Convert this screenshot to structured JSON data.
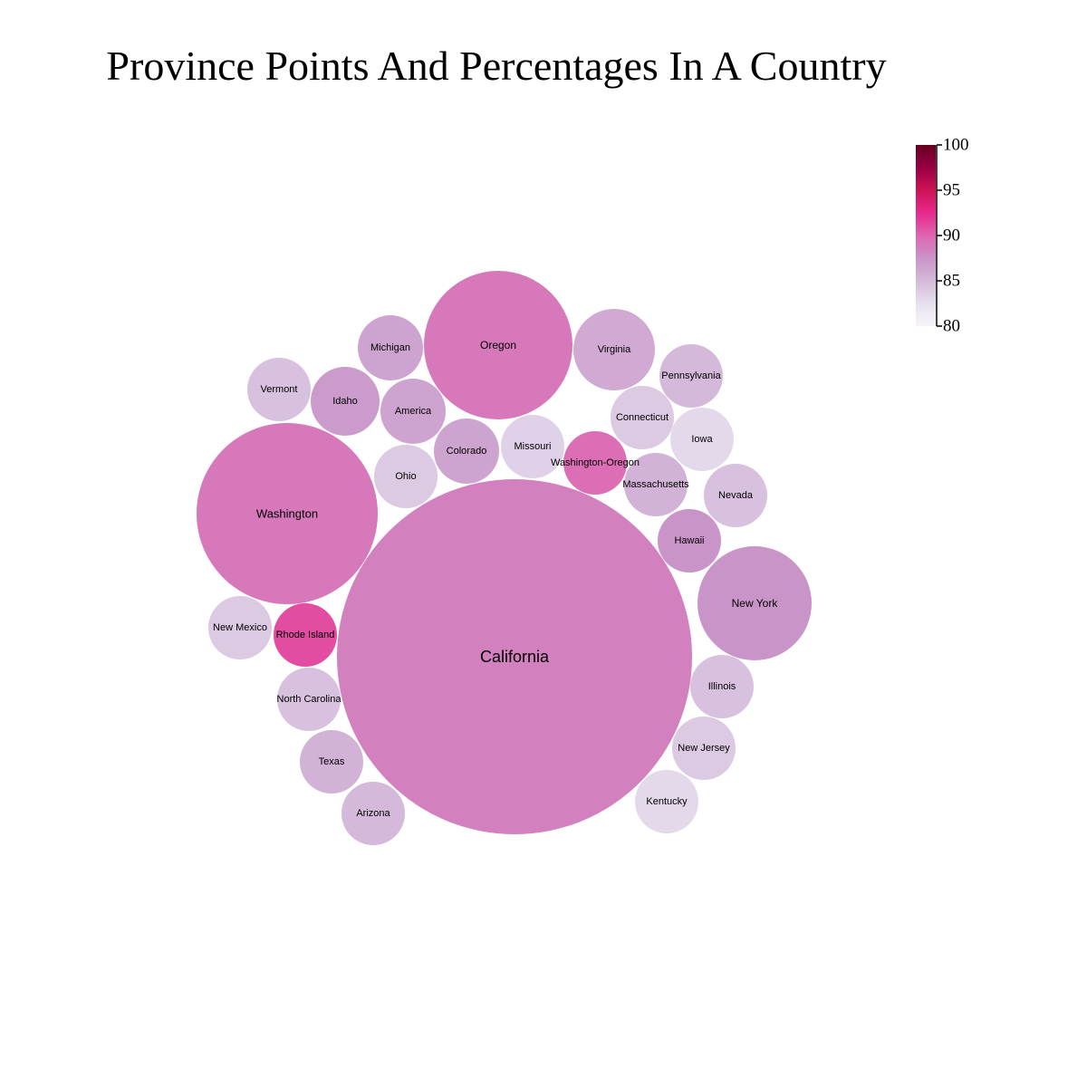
{
  "chart_data": {
    "type": "bubble",
    "title": "Province Points And Percentages In A Country",
    "colorbar": {
      "min": 80,
      "max": 100,
      "ticks": [
        "80",
        "85",
        "90",
        "95",
        "100"
      ],
      "colors": [
        "#f7f4f9",
        "#e7e1ef",
        "#d4b9da",
        "#c994c7",
        "#df65b0",
        "#e7298a",
        "#ce1256",
        "#980043",
        "#67001f"
      ]
    },
    "bubbles": [
      {
        "name": "California",
        "value": 100,
        "percentage": 88.5
      },
      {
        "name": "Washington",
        "value": 26,
        "percentage": 89.0
      },
      {
        "name": "Oregon",
        "value": 17.5,
        "percentage": 89.0
      },
      {
        "name": "New York",
        "value": 10.5,
        "percentage": 87.5
      },
      {
        "name": "Virginia",
        "value": 5.3,
        "percentage": 86.0
      },
      {
        "name": "Michigan",
        "value": 3.4,
        "percentage": 86.5
      },
      {
        "name": "Idaho",
        "value": 3.8,
        "percentage": 87.0
      },
      {
        "name": "America",
        "value": 3.4,
        "percentage": 86.5
      },
      {
        "name": "Colorado",
        "value": 3.4,
        "percentage": 86.5
      },
      {
        "name": "Ohio",
        "value": 3.2,
        "percentage": 84.0
      },
      {
        "name": "Missouri",
        "value": 3.2,
        "percentage": 83.5
      },
      {
        "name": "Washington-Oregon",
        "value": 3.2,
        "percentage": 89.5
      },
      {
        "name": "Vermont",
        "value": 3.2,
        "percentage": 84.5
      },
      {
        "name": "Pennsylvania",
        "value": 3.2,
        "percentage": 85.0
      },
      {
        "name": "Connecticut",
        "value": 3.2,
        "percentage": 84.0
      },
      {
        "name": "Iowa",
        "value": 3.2,
        "percentage": 83.0
      },
      {
        "name": "Massachusetts",
        "value": 3.2,
        "percentage": 85.5
      },
      {
        "name": "Nevada",
        "value": 3.2,
        "percentage": 84.5
      },
      {
        "name": "Hawaii",
        "value": 3.2,
        "percentage": 87.5
      },
      {
        "name": "New Mexico",
        "value": 3.2,
        "percentage": 84.0
      },
      {
        "name": "Rhode Island",
        "value": 3.2,
        "percentage": 91.0
      },
      {
        "name": "North Carolina",
        "value": 3.2,
        "percentage": 84.5
      },
      {
        "name": "Texas",
        "value": 3.2,
        "percentage": 85.5
      },
      {
        "name": "Arizona",
        "value": 3.2,
        "percentage": 85.0
      },
      {
        "name": "Illinois",
        "value": 3.2,
        "percentage": 84.5
      },
      {
        "name": "New Jersey",
        "value": 3.2,
        "percentage": 84.0
      },
      {
        "name": "Kentucky",
        "value": 3.2,
        "percentage": 83.0
      }
    ]
  }
}
